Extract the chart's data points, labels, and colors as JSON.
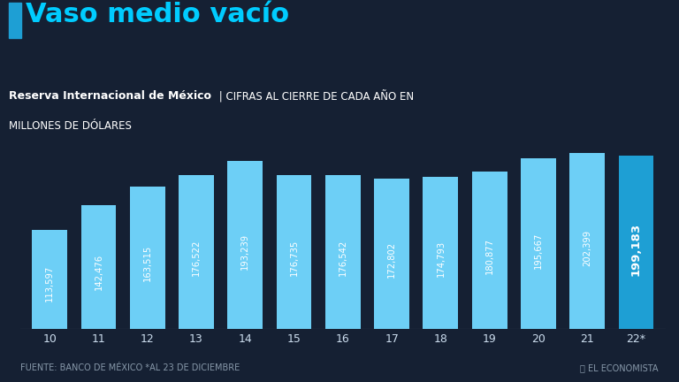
{
  "title": "Vaso medio vacío",
  "subtitle_bold": "Reserva Internacional de México",
  "subtitle_pipe": " | CIFRAS AL CIERRE DE CADA AÑO EN",
  "subtitle_line2": "MILLONES DE DÓLARES",
  "categories": [
    "10",
    "11",
    "12",
    "13",
    "14",
    "15",
    "16",
    "17",
    "18",
    "19",
    "20",
    "21",
    "22*"
  ],
  "values": [
    113597,
    142476,
    163515,
    176522,
    193239,
    176735,
    176542,
    172802,
    174793,
    180877,
    195667,
    202399,
    199183
  ],
  "labels": [
    "113,597",
    "142,476",
    "163,515",
    "176,522",
    "193,239",
    "176,735",
    "176,542",
    "172,802",
    "174,793",
    "180,877",
    "195,667",
    "202,399",
    "199,183"
  ],
  "bar_color": "#6dcff6",
  "last_bar_color": "#1e9fd4",
  "background_color": "#152033",
  "title_color": "#ffffff",
  "title_cyan": "#00ccff",
  "label_color": "#ffffff",
  "axis_color": "#ccddee",
  "footer_color": "#8899aa",
  "accent_color": "#1e9fd4",
  "line_color": "#1e9fd4",
  "ylim": [
    0,
    220000
  ]
}
